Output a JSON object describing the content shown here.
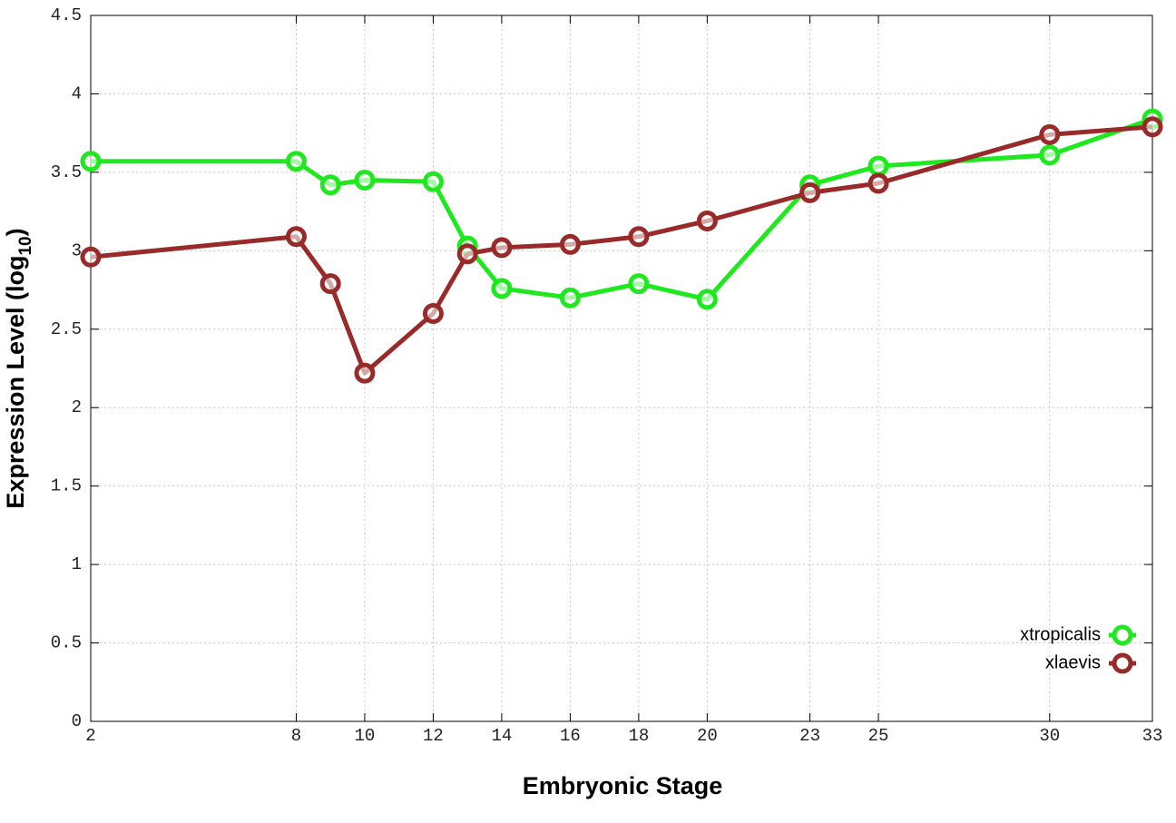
{
  "chart_data": {
    "type": "line",
    "x_label": "Embryonic Stage",
    "y_label": [
      "Expression Level (log",
      "10",
      ")"
    ],
    "x": [
      2,
      8,
      9,
      10,
      12,
      13,
      14,
      16,
      18,
      20,
      23,
      25,
      30,
      33
    ],
    "series": [
      {
        "name": "xtropicalis",
        "color": "#1fe81f",
        "values": [
          3.57,
          3.57,
          3.42,
          3.45,
          3.44,
          3.03,
          2.76,
          2.7,
          2.79,
          2.69,
          3.42,
          3.54,
          3.61,
          3.84
        ]
      },
      {
        "name": "xlaevis",
        "color": "#992a2a",
        "values": [
          2.96,
          3.09,
          2.79,
          2.22,
          2.6,
          2.98,
          3.02,
          3.04,
          3.09,
          3.19,
          3.37,
          3.43,
          3.74,
          3.79
        ]
      }
    ],
    "xlim": [
      2,
      33
    ],
    "xticks": [
      2,
      8,
      10,
      12,
      14,
      16,
      18,
      20,
      23,
      25,
      30,
      33
    ],
    "ylim": [
      0,
      4.5
    ],
    "yticks": [
      0,
      0.5,
      1,
      1.5,
      2,
      2.5,
      3,
      3.5,
      4,
      4.5
    ],
    "grid": true,
    "legend_position": "lower right"
  }
}
